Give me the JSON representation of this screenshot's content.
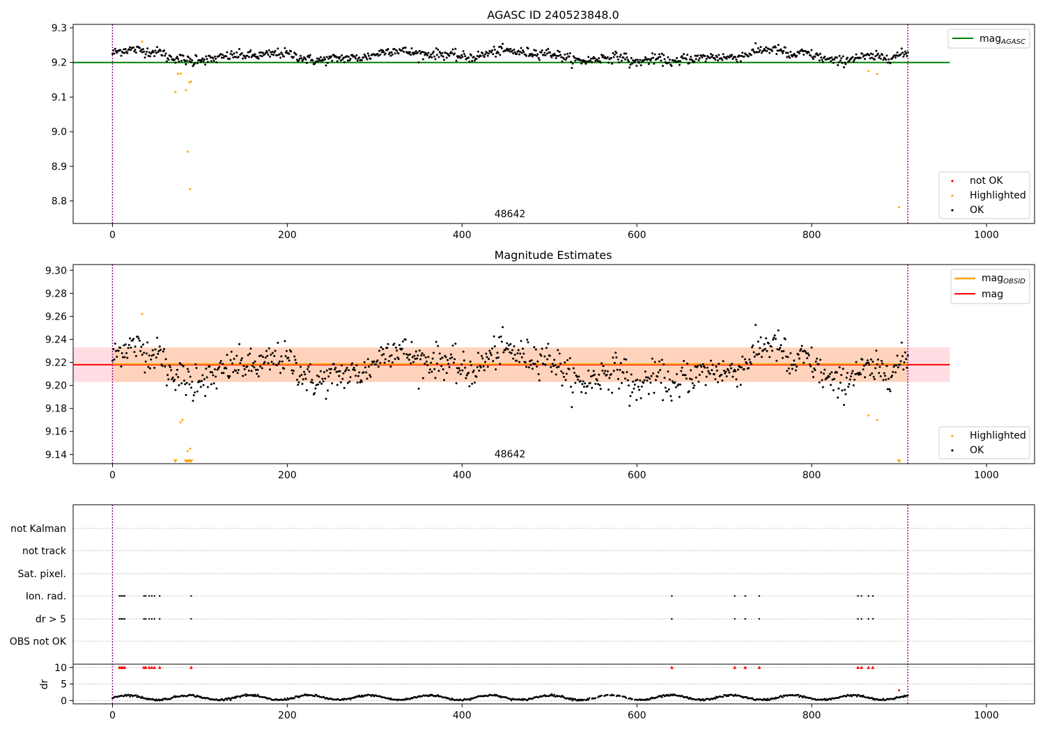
{
  "figure": {
    "panel1_title": "AGASC ID 240523848.0",
    "panel2_title": "Magnitude Estimates",
    "panel1_annotation": "48642",
    "panel2_annotation": "48642",
    "panel3_ylabel": "dr"
  },
  "legends": {
    "p1_top": {
      "line_label": "mag",
      "line_sub": "AGASC",
      "line_color": "#008000"
    },
    "p1_bottom": [
      "not OK",
      "Highlighted",
      "OK"
    ],
    "p2_top": [
      {
        "label": "mag",
        "sub": "OBSID",
        "color": "#ffa500"
      },
      {
        "label": "mag",
        "sub": "",
        "color": "#ff0000"
      }
    ],
    "p2_bottom": [
      "Highlighted",
      "OK"
    ]
  },
  "colors": {
    "ok": "#000000",
    "highlighted": "#ffa500",
    "not_ok": "#ff0000",
    "agasc_line": "#008000",
    "mag_line": "#ff0000",
    "obsid_line": "#ffa500",
    "band_outer": "#ffdde3",
    "band_inner": "#ffd3bb",
    "vline": "#800080"
  },
  "chart_data": [
    {
      "type": "scatter",
      "title": "AGASC ID 240523848.0",
      "xlim": [
        -45,
        1055
      ],
      "ylim": [
        8.735,
        9.31
      ],
      "xticks": [
        0,
        200,
        400,
        600,
        800,
        1000
      ],
      "yticks": [
        8.8,
        8.9,
        9.0,
        9.1,
        9.2,
        9.3
      ],
      "ytick_labels": [
        "8.8",
        "8.9",
        "9.0",
        "9.1",
        "9.2",
        "9.3"
      ],
      "hline": {
        "name": "mag_AGASC",
        "y": 9.2,
        "x_range": [
          -45,
          958
        ]
      },
      "vlines": [
        0,
        910
      ],
      "annotation": {
        "text": "48642",
        "x": 455,
        "y": 8.76
      },
      "series": [
        {
          "name": "OK",
          "n": 910,
          "x_range": [
            0,
            910
          ],
          "y_center": 9.218,
          "y_spread": 0.012
        },
        {
          "name": "Highlighted",
          "points": [
            [
              72,
              9.115
            ],
            [
              75,
              9.167
            ],
            [
              78,
              9.168
            ],
            [
              84,
              9.12
            ],
            [
              86,
              8.942
            ],
            [
              88,
              9.142
            ],
            [
              89,
              8.834
            ],
            [
              90,
              9.145
            ],
            [
              34,
              9.26
            ],
            [
              865,
              9.175
            ],
            [
              875,
              9.167
            ],
            [
              900,
              8.782
            ]
          ]
        }
      ]
    },
    {
      "type": "scatter",
      "title": "Magnitude Estimates",
      "xlim": [
        -45,
        1055
      ],
      "ylim": [
        9.132,
        9.305
      ],
      "xticks": [
        0,
        200,
        400,
        600,
        800,
        1000
      ],
      "yticks": [
        9.14,
        9.16,
        9.18,
        9.2,
        9.22,
        9.24,
        9.26,
        9.28,
        9.3
      ],
      "ytick_labels": [
        "9.14",
        "9.16",
        "9.18",
        "9.20",
        "9.22",
        "9.24",
        "9.26",
        "9.28",
        "9.30"
      ],
      "mag": 9.218,
      "mag_band": [
        9.203,
        9.233
      ],
      "mag_obsid_range": [
        0,
        910
      ],
      "vlines": [
        0,
        910
      ],
      "annotation": {
        "text": "48642",
        "x": 455,
        "y": 9.137
      },
      "series": [
        {
          "name": "OK",
          "n": 910,
          "x_range": [
            0,
            910
          ],
          "y_center": 9.218,
          "y_spread": 0.012
        },
        {
          "name": "Highlighted",
          "points": [
            [
              34,
              9.262
            ],
            [
              78,
              9.168
            ],
            [
              80,
              9.17
            ],
            [
              86,
              9.143
            ],
            [
              89,
              9.145
            ],
            [
              865,
              9.174
            ],
            [
              875,
              9.17
            ]
          ]
        },
        {
          "name": "Highlighted (clipped)",
          "marker": "triangle-down",
          "points": [
            [
              72,
              9.132
            ],
            [
              84,
              9.132
            ],
            [
              86,
              9.132
            ],
            [
              88,
              9.132
            ],
            [
              90,
              9.132
            ],
            [
              900,
              9.132
            ]
          ]
        }
      ]
    },
    {
      "type": "scatter",
      "title": "",
      "xlim": [
        -45,
        1055
      ],
      "xticks": [
        0,
        200,
        400,
        600,
        800,
        1000
      ],
      "vlines": [
        0,
        910
      ],
      "flag_rows": [
        "not Kalman",
        "not track",
        "Sat. pixel.",
        "Ion. rad.",
        "dr > 5",
        "OBS not OK"
      ],
      "flag_points": {
        "Ion. rad.": [
          8,
          10,
          12,
          14,
          36,
          38,
          42,
          45,
          48,
          54,
          90,
          640,
          712,
          724,
          740,
          853,
          857,
          865,
          870
        ],
        "dr > 5": [
          8,
          10,
          12,
          14,
          36,
          38,
          42,
          45,
          48,
          54,
          90,
          640,
          712,
          724,
          740,
          853,
          857,
          865,
          870
        ]
      },
      "dr": {
        "ylabel": "dr",
        "ylim": [
          -1,
          11
        ],
        "yticks": [
          0,
          5,
          10
        ],
        "clipped_at_10": [
          8,
          10,
          12,
          14,
          36,
          38,
          42,
          45,
          48,
          54,
          90,
          640,
          712,
          724,
          740,
          853,
          857,
          865,
          870
        ],
        "not_ok_point": [
          900,
          3.1
        ],
        "n": 910,
        "y_center": 0.9,
        "y_spread": 0.6
      }
    }
  ]
}
